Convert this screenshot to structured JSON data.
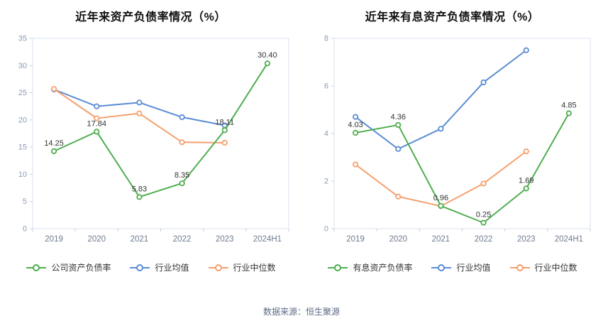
{
  "chart_data": [
    {
      "type": "line",
      "title": "近年来资产负债率情况（%）",
      "categories": [
        "2019",
        "2020",
        "2021",
        "2022",
        "2023",
        "2024H1"
      ],
      "ylim": [
        0,
        35
      ],
      "yticks": [
        0,
        5,
        10,
        15,
        20,
        25,
        30,
        35
      ],
      "grid": false,
      "legend_position": "bottom",
      "series": [
        {
          "name": "公司资产负债率",
          "color": "#4fae4f",
          "values": [
            14.25,
            17.84,
            5.83,
            8.35,
            18.11,
            30.4
          ],
          "labels": [
            "14.25",
            "17.84",
            "5.83",
            "8.35",
            "18.11",
            "30.40"
          ]
        },
        {
          "name": "行业均值",
          "color": "#5b8dd4",
          "values": [
            25.6,
            22.5,
            23.2,
            20.5,
            19.0,
            null
          ]
        },
        {
          "name": "行业中位数",
          "color": "#f5a06e",
          "values": [
            25.7,
            20.3,
            21.2,
            15.9,
            15.8,
            null
          ]
        }
      ]
    },
    {
      "type": "line",
      "title": "近年来有息资产负债率情况（%）",
      "categories": [
        "2019",
        "2020",
        "2021",
        "2022",
        "2023",
        "2024H1"
      ],
      "ylim": [
        0,
        8
      ],
      "yticks": [
        0,
        2,
        4,
        6,
        8
      ],
      "grid": false,
      "legend_position": "bottom",
      "series": [
        {
          "name": "有息资产负债率",
          "color": "#4fae4f",
          "values": [
            4.03,
            4.36,
            0.96,
            0.25,
            1.69,
            4.85
          ],
          "labels": [
            "4.03",
            "4.36",
            "0.96",
            "0.25",
            "1.69",
            "4.85"
          ]
        },
        {
          "name": "行业均值",
          "color": "#5b8dd4",
          "values": [
            4.7,
            3.35,
            4.2,
            6.15,
            7.5,
            null
          ]
        },
        {
          "name": "行业中位数",
          "color": "#f5a06e",
          "values": [
            2.7,
            1.35,
            0.95,
            1.9,
            3.25,
            null
          ]
        }
      ]
    }
  ],
  "footer": {
    "source": "数据来源：恒生聚源"
  },
  "style": {
    "border_color": "#dbe3f0",
    "axis_color": "#c4d0e0",
    "tick_label_color": "#8b9bb5",
    "x_label_color": "#6e7b90",
    "label_color": "#333333",
    "background": "#ffffff"
  }
}
